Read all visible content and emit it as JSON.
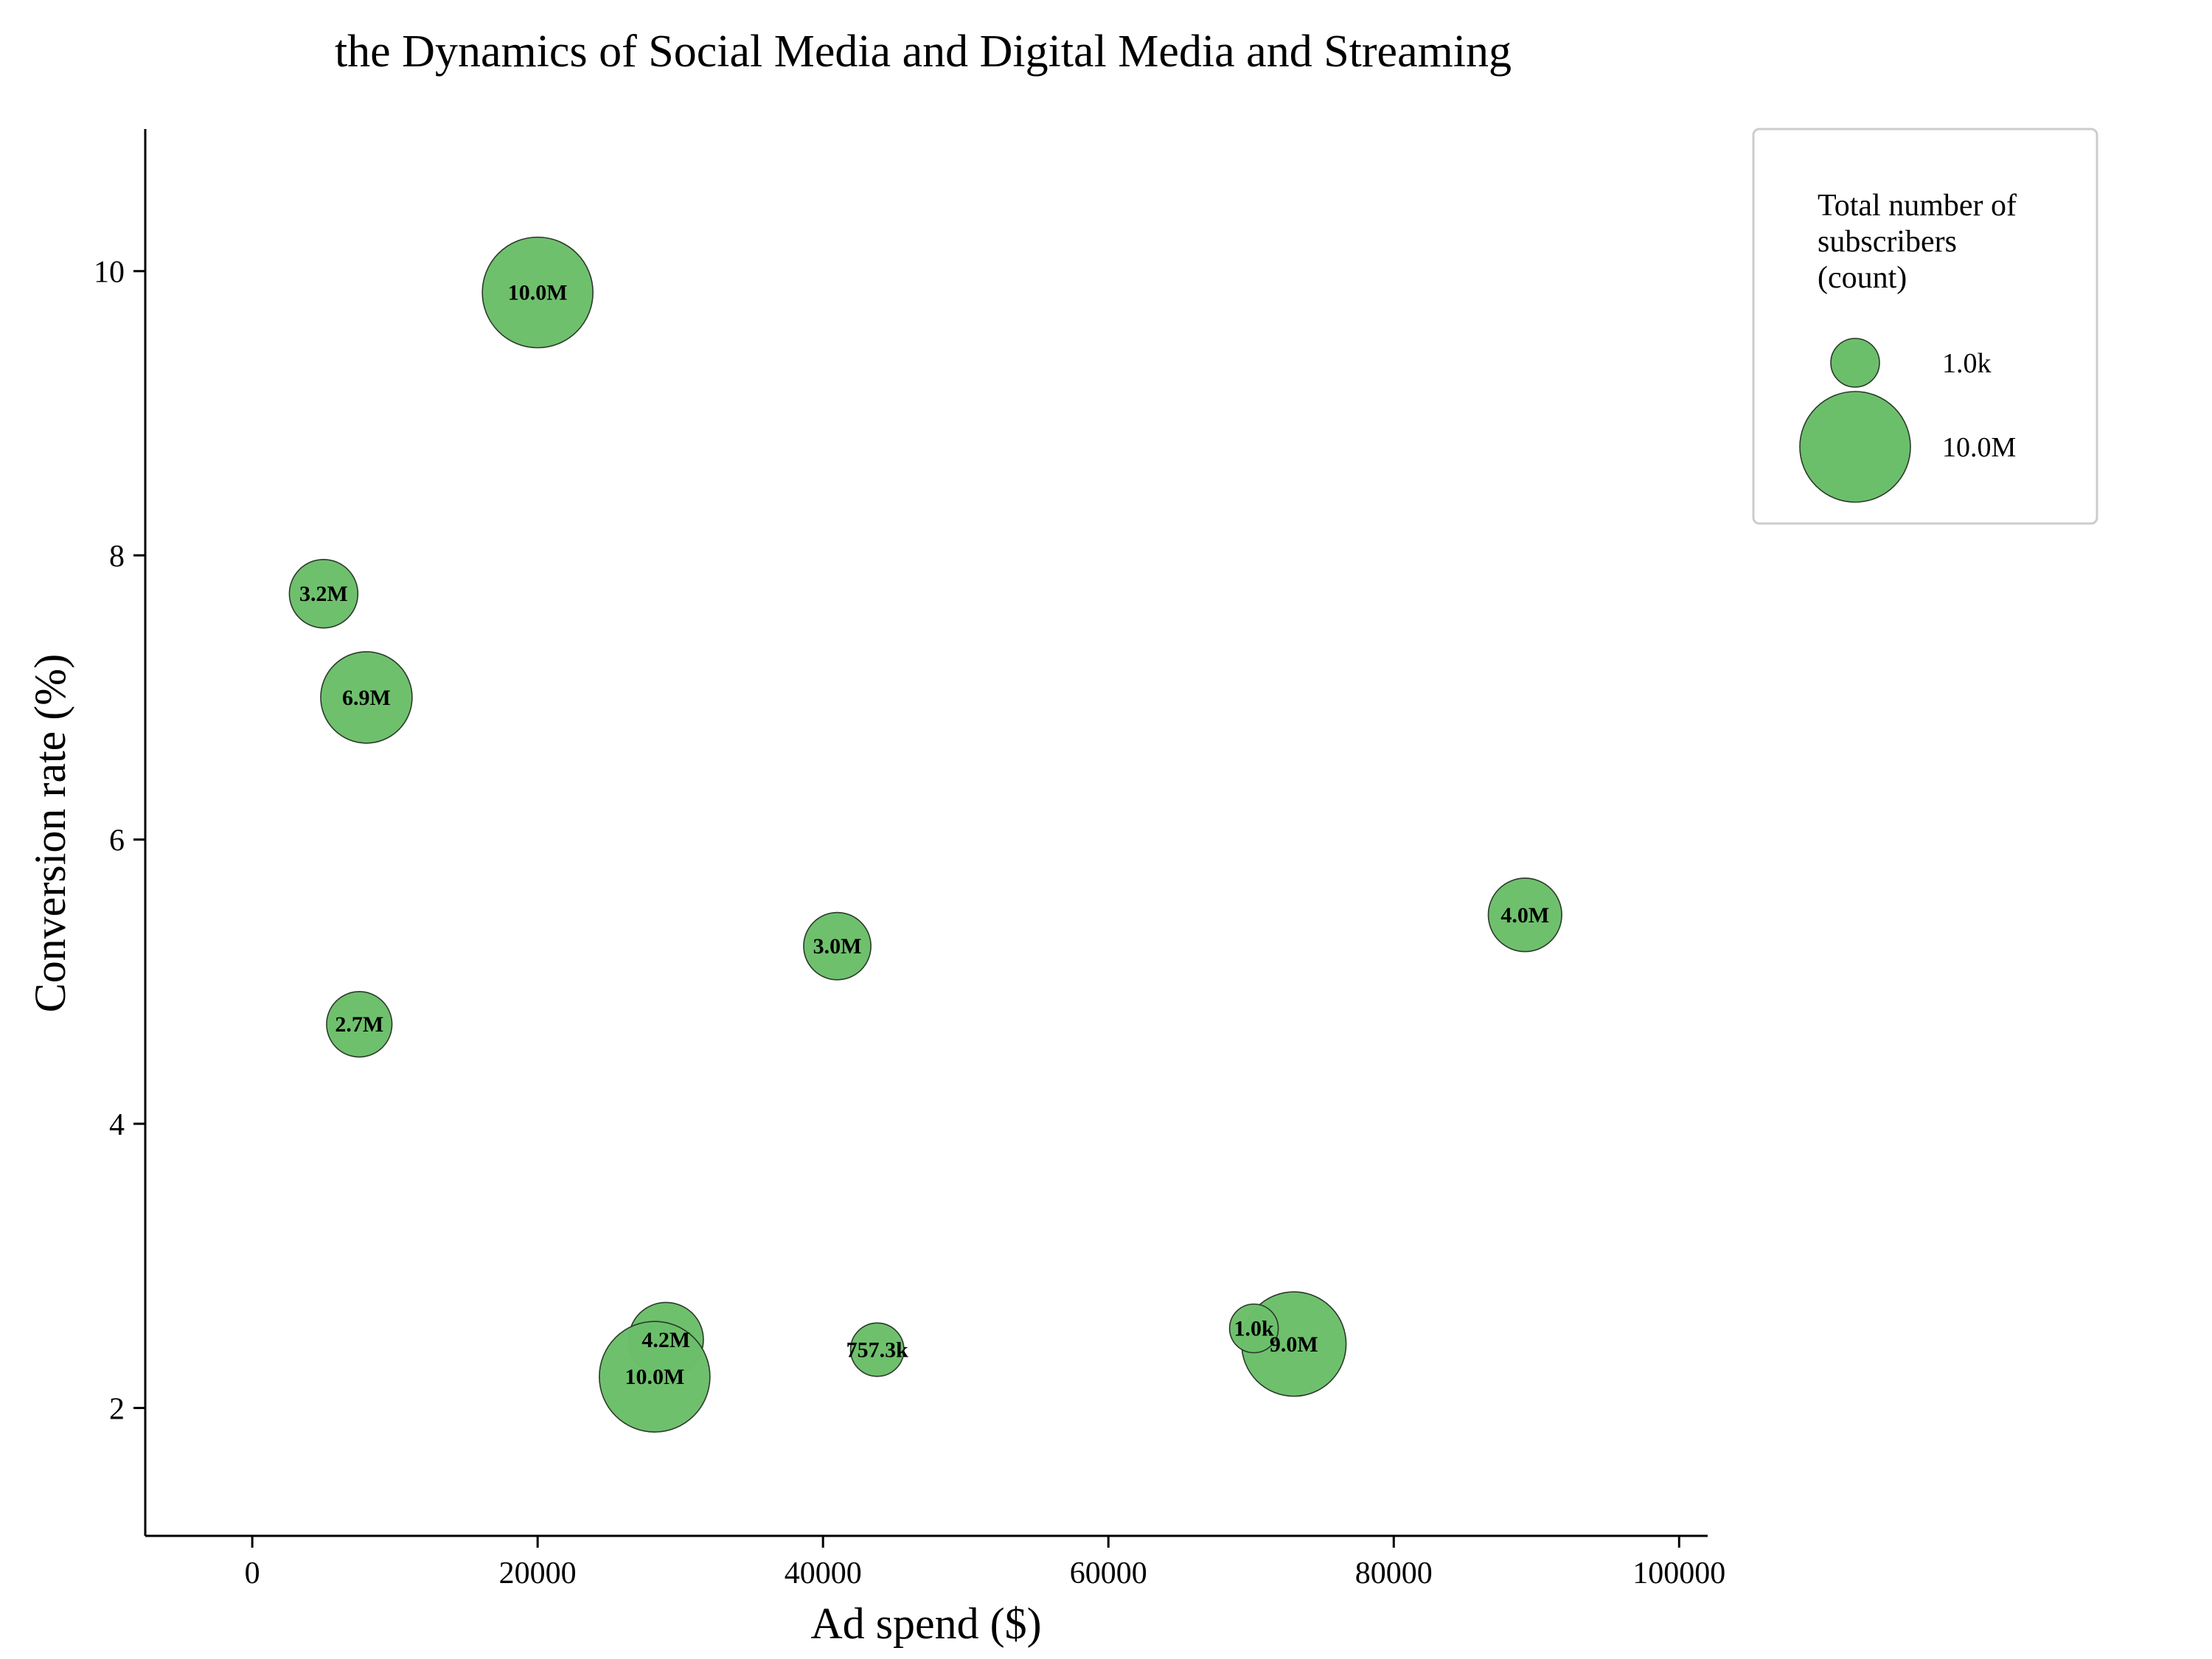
{
  "chart_data": {
    "type": "scatter",
    "title": "the Dynamics of Social Media and Digital Media and Streaming",
    "xlabel": "Ad spend ($)",
    "ylabel": "Conversion rate (%)",
    "xlim": [
      -7500,
      102000
    ],
    "ylim": [
      1.1,
      11.0
    ],
    "xticks": [
      0,
      20000,
      40000,
      60000,
      80000,
      100000
    ],
    "yticks": [
      2,
      4,
      6,
      8,
      10
    ],
    "grid": false,
    "bubble_color": "#6cbf6a",
    "edge_color": "#2a3a2a",
    "legend": {
      "position": "outside-right",
      "title_lines": [
        "Total number of",
        "subscribers",
        "(count)"
      ],
      "entries": [
        {
          "label": "1.0k",
          "size": 1000
        },
        {
          "label": "10.0M",
          "size": 10000000
        }
      ]
    },
    "points": [
      {
        "x": 20000,
        "y": 9.85,
        "size": 10000000,
        "label": "10.0M"
      },
      {
        "x": 5000,
        "y": 7.73,
        "size": 3200000,
        "label": "3.2M"
      },
      {
        "x": 8000,
        "y": 7.0,
        "size": 6900000,
        "label": "6.9M"
      },
      {
        "x": 7500,
        "y": 4.7,
        "size": 2700000,
        "label": "2.7M"
      },
      {
        "x": 41000,
        "y": 5.25,
        "size": 3000000,
        "label": "3.0M"
      },
      {
        "x": 89200,
        "y": 5.47,
        "size": 4000000,
        "label": "4.0M"
      },
      {
        "x": 29000,
        "y": 2.48,
        "size": 4200000,
        "label": "4.2M"
      },
      {
        "x": 28200,
        "y": 2.22,
        "size": 10000000,
        "label": "10.0M"
      },
      {
        "x": 43800,
        "y": 2.41,
        "size": 757300,
        "label": "757.3k"
      },
      {
        "x": 73000,
        "y": 2.45,
        "size": 9000000,
        "label": "9.0M"
      },
      {
        "x": 70200,
        "y": 2.56,
        "size": 1000,
        "label": "1.0k"
      }
    ]
  }
}
